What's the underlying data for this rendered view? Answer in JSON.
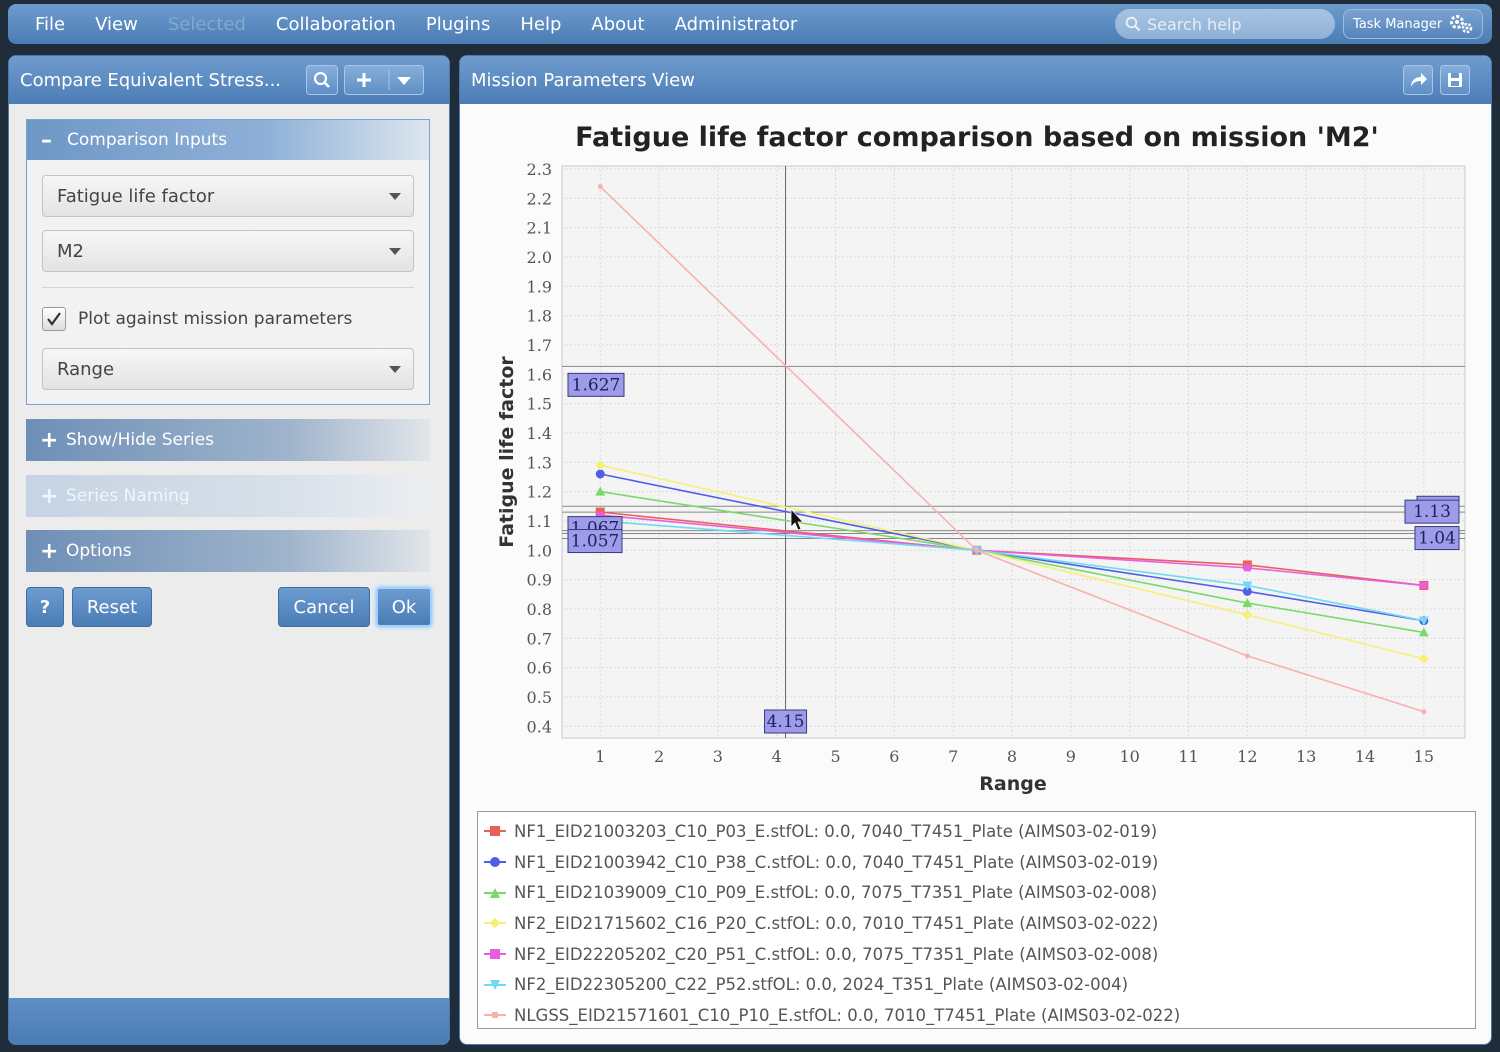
{
  "menubar": {
    "items": [
      {
        "label": "File",
        "enabled": true
      },
      {
        "label": "View",
        "enabled": true
      },
      {
        "label": "Selected",
        "enabled": false
      },
      {
        "label": "Collaboration",
        "enabled": true
      },
      {
        "label": "Plugins",
        "enabled": true
      },
      {
        "label": "Help",
        "enabled": true
      },
      {
        "label": "About",
        "enabled": true
      },
      {
        "label": "Administrator",
        "enabled": true
      }
    ],
    "search_placeholder": "Search help",
    "task_manager_label": "Task Manager"
  },
  "left_panel": {
    "title": "Compare Equivalent Stress...",
    "comparison_inputs": {
      "title": "Comparison Inputs",
      "metric_value": "Fatigue life factor",
      "mission_value": "M2",
      "plot_against_label": "Plot against mission parameters",
      "plot_against_checked": true,
      "parameter_value": "Range"
    },
    "sections": [
      {
        "label": "Show/Hide Series",
        "enabled": true
      },
      {
        "label": "Series Naming",
        "enabled": false
      },
      {
        "label": "Options",
        "enabled": true
      }
    ],
    "buttons": {
      "help": "?",
      "reset": "Reset",
      "cancel": "Cancel",
      "ok": "Ok"
    }
  },
  "right_panel": {
    "title": "Mission Parameters View"
  },
  "colors": {
    "accent": "#4a7cb4",
    "series_colors": [
      "#e8605a",
      "#4e5ee8",
      "#7bd86a",
      "#f5f078",
      "#e85ee2",
      "#6fdaf2",
      "#f7b2ae"
    ]
  },
  "chart_data": {
    "type": "line",
    "title": "Fatigue life factor comparison based on mission 'M2'",
    "xlabel": "Range",
    "ylabel": "Fatigue life factor",
    "xlim": [
      0.35,
      15.7
    ],
    "ylim": [
      0.36,
      2.31
    ],
    "x_ticks": [
      "1",
      "2",
      "3",
      "4",
      "5",
      "6",
      "7",
      "8",
      "9",
      "10",
      "11",
      "12",
      "13",
      "14",
      "15"
    ],
    "y_ticks": [
      "0.4",
      "0.5",
      "0.6",
      "0.7",
      "0.8",
      "0.9",
      "1.0",
      "1.1",
      "1.2",
      "1.3",
      "1.4",
      "1.5",
      "1.6",
      "1.7",
      "1.8",
      "1.9",
      "2.0",
      "2.1",
      "2.2",
      "2.3"
    ],
    "grid": true,
    "legend": "bottom",
    "x": [
      1,
      7.4,
      12,
      15
    ],
    "series": [
      {
        "name": "NF1_EID21003203_C10_P03_E.stfOL: 0.0, 7040_T7451_Plate (AIMS03-02-019)",
        "marker": "square",
        "values": [
          1.13,
          1.0,
          0.95,
          0.88
        ]
      },
      {
        "name": "NF1_EID21003942_C10_P38_C.stfOL: 0.0, 7040_T7451_Plate (AIMS03-02-019)",
        "marker": "circle",
        "values": [
          1.26,
          1.0,
          0.86,
          0.76
        ]
      },
      {
        "name": "NF1_EID21039009_C10_P09_E.stfOL: 0.0, 7075_T7351_Plate (AIMS03-02-008)",
        "marker": "triangle",
        "values": [
          1.2,
          1.0,
          0.82,
          0.72
        ]
      },
      {
        "name": "NF2_EID21715602_C16_P20_C.stfOL: 0.0, 7010_T7451_Plate (AIMS03-02-022)",
        "marker": "diamond",
        "values": [
          1.29,
          1.0,
          0.78,
          0.63
        ]
      },
      {
        "name": "NF2_EID22205202_C20_P51_C.stfOL: 0.0, 7075_T7351_Plate (AIMS03-02-008)",
        "marker": "square-small",
        "values": [
          1.12,
          1.0,
          0.94,
          0.88
        ]
      },
      {
        "name": "NF2_EID22305200_C22_P52.stfOL: 0.0, 2024_T351_Plate (AIMS03-02-004)",
        "marker": "triangle-down",
        "values": [
          1.1,
          1.0,
          0.88,
          0.76
        ]
      },
      {
        "name": "NLGSS_EID21571601_C10_P10_E.stfOL: 0.0, 7010_T7451_Plate (AIMS03-02-022)",
        "marker": "none",
        "values": [
          2.24,
          1.0,
          0.64,
          0.45
        ]
      }
    ],
    "crosshair": {
      "x": 4.15,
      "y": 1.627,
      "x_label": "4.15",
      "y_label": "1.627",
      "intersections_right": [
        "1.15",
        "1.13",
        "1.04"
      ],
      "intersections_left": [
        "1.067",
        "1.057"
      ]
    }
  }
}
